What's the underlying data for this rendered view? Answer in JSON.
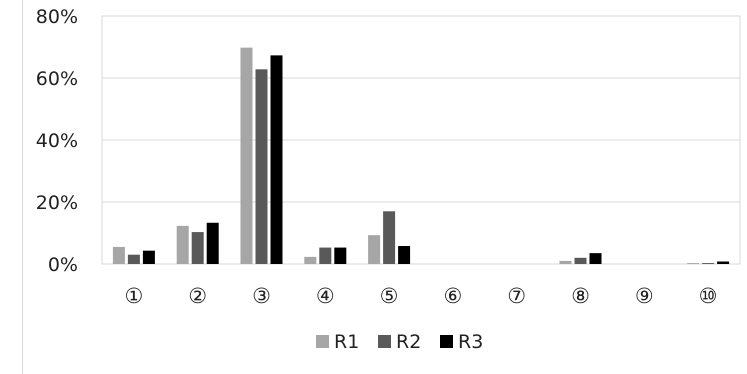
{
  "chart_data": {
    "type": "bar",
    "title": "",
    "xlabel": "",
    "ylabel": "",
    "categories": [
      "①",
      "②",
      "③",
      "④",
      "⑤",
      "⑥",
      "⑦",
      "⑧",
      "⑨",
      "⑩"
    ],
    "series": [
      {
        "name": "R1",
        "color": "#a6a6a6",
        "values": [
          5.5,
          12.3,
          69.8,
          2.3,
          9.3,
          0,
          0,
          1.0,
          0,
          0.3
        ]
      },
      {
        "name": "R2",
        "color": "#595959",
        "values": [
          3.0,
          10.3,
          62.8,
          5.3,
          17.0,
          0,
          0,
          2.0,
          0,
          0.3
        ]
      },
      {
        "name": "R3",
        "color": "#000000",
        "values": [
          4.3,
          13.3,
          67.3,
          5.3,
          5.8,
          0,
          0,
          3.5,
          0,
          0.8
        ]
      }
    ],
    "ylim": [
      0,
      80
    ],
    "yticks": [
      "0%",
      "20%",
      "40%",
      "60%",
      "80%"
    ],
    "grid": true,
    "legend": "bottom"
  }
}
